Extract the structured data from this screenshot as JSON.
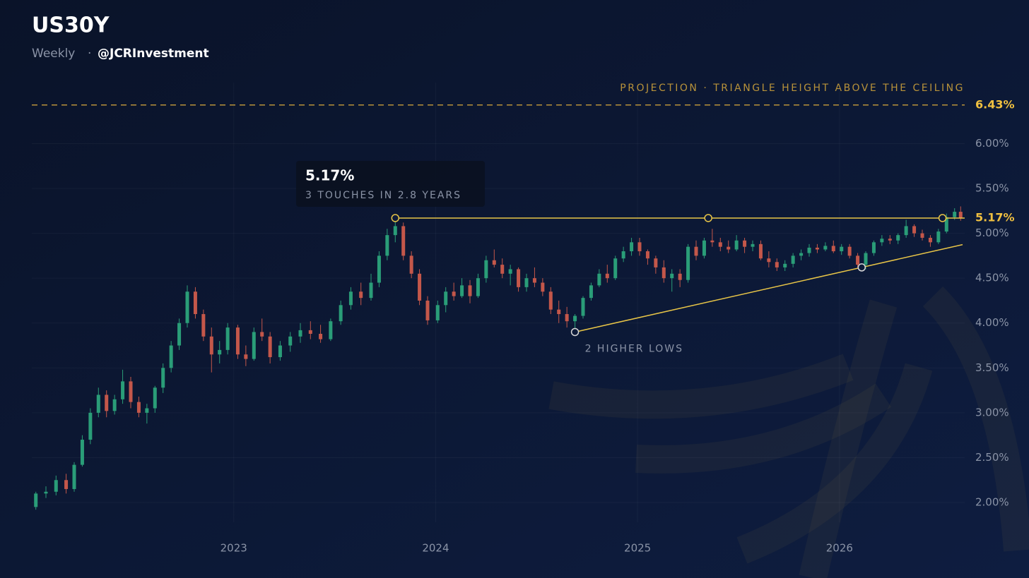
{
  "chart_data": {
    "type": "candlestick",
    "title": "US30Y",
    "subtitle": "Weekly",
    "author": "@JCRInvestment",
    "up_color": "#2a9d78",
    "down_color": "#c4574a",
    "xlim": [
      2022,
      2026.62
    ],
    "xticks": [
      2023,
      2024,
      2025,
      2026
    ],
    "ylim": [
      1.78,
      6.68
    ],
    "yticks": [
      {
        "value": 2,
        "label": "2.00%"
      },
      {
        "value": 2.5,
        "label": "2.50%"
      },
      {
        "value": 3,
        "label": "3.00%"
      },
      {
        "value": 3.5,
        "label": "3.50%"
      },
      {
        "value": 4,
        "label": "4.00%"
      },
      {
        "value": 4.5,
        "label": "4.50%"
      },
      {
        "value": 5,
        "label": "5.00%"
      },
      {
        "value": 5.5,
        "label": "5.50%"
      },
      {
        "value": 6,
        "label": "6.00%"
      }
    ],
    "grid": true,
    "x": [
      2022.02,
      2022.07,
      2022.12,
      2022.17,
      2022.21,
      2022.25,
      2022.29,
      2022.33,
      2022.37,
      2022.41,
      2022.45,
      2022.49,
      2022.53,
      2022.57,
      2022.61,
      2022.65,
      2022.69,
      2022.73,
      2022.77,
      2022.81,
      2022.85,
      2022.89,
      2022.93,
      2022.97,
      2023.02,
      2023.06,
      2023.1,
      2023.14,
      2023.18,
      2023.23,
      2023.28,
      2023.33,
      2023.38,
      2023.43,
      2023.48,
      2023.53,
      2023.58,
      2023.63,
      2023.68,
      2023.72,
      2023.76,
      2023.8,
      2023.84,
      2023.88,
      2023.92,
      2023.96,
      2024.01,
      2024.05,
      2024.09,
      2024.13,
      2024.17,
      2024.21,
      2024.25,
      2024.29,
      2024.33,
      2024.37,
      2024.41,
      2024.45,
      2024.49,
      2024.53,
      2024.57,
      2024.61,
      2024.65,
      2024.69,
      2024.73,
      2024.77,
      2024.81,
      2024.85,
      2024.89,
      2024.93,
      2024.97,
      2025.01,
      2025.05,
      2025.09,
      2025.13,
      2025.17,
      2025.21,
      2025.25,
      2025.29,
      2025.33,
      2025.37,
      2025.41,
      2025.45,
      2025.49,
      2025.53,
      2025.57,
      2025.61,
      2025.65,
      2025.69,
      2025.73,
      2025.77,
      2025.81,
      2025.85,
      2025.89,
      2025.93,
      2025.97,
      2026.01,
      2026.05,
      2026.09,
      2026.13,
      2026.17,
      2026.21,
      2026.25,
      2026.29,
      2026.33,
      2026.37,
      2026.41,
      2026.45,
      2026.49,
      2026.53,
      2026.57,
      2026.6
    ],
    "open": [
      1.95,
      2.1,
      2.12,
      2.25,
      2.15,
      2.42,
      2.7,
      3.0,
      3.2,
      3.02,
      3.15,
      3.35,
      3.12,
      3.0,
      3.05,
      3.28,
      3.5,
      3.75,
      4.0,
      4.35,
      4.1,
      3.85,
      3.65,
      3.7,
      3.95,
      3.65,
      3.6,
      3.9,
      3.85,
      3.62,
      3.75,
      3.85,
      3.92,
      3.88,
      3.82,
      4.02,
      4.2,
      4.35,
      4.28,
      4.45,
      4.75,
      4.98,
      5.08,
      4.75,
      4.55,
      4.25,
      4.03,
      4.2,
      4.35,
      4.3,
      4.42,
      4.3,
      4.5,
      4.7,
      4.65,
      4.55,
      4.6,
      4.4,
      4.5,
      4.45,
      4.35,
      4.15,
      4.1,
      4.02,
      4.08,
      4.28,
      4.42,
      4.55,
      4.5,
      4.72,
      4.8,
      4.9,
      4.8,
      4.72,
      4.62,
      4.5,
      4.55,
      4.48,
      4.85,
      4.75,
      4.92,
      4.9,
      4.85,
      4.82,
      4.92,
      4.85,
      4.88,
      4.72,
      4.68,
      4.62,
      4.66,
      4.75,
      4.78,
      4.84,
      4.82,
      4.86,
      4.8,
      4.85,
      4.75,
      4.65,
      4.78,
      4.9,
      4.94,
      4.92,
      4.98,
      5.08,
      5.0,
      4.95,
      4.9,
      5.02,
      5.18,
      5.24
    ],
    "high": [
      2.12,
      2.18,
      2.3,
      2.32,
      2.45,
      2.75,
      3.05,
      3.28,
      3.25,
      3.2,
      3.48,
      3.4,
      3.18,
      3.1,
      3.3,
      3.55,
      3.8,
      4.05,
      4.42,
      4.4,
      4.15,
      3.95,
      3.8,
      4.0,
      3.98,
      3.75,
      3.95,
      4.05,
      3.9,
      3.8,
      3.9,
      4.0,
      4.02,
      3.98,
      4.05,
      4.25,
      4.4,
      4.45,
      4.55,
      4.8,
      5.05,
      5.17,
      5.12,
      4.8,
      4.6,
      4.3,
      4.25,
      4.4,
      4.45,
      4.5,
      4.48,
      4.55,
      4.75,
      4.82,
      4.72,
      4.65,
      4.62,
      4.55,
      4.62,
      4.5,
      4.4,
      4.25,
      4.18,
      4.1,
      4.3,
      4.45,
      4.6,
      4.65,
      4.75,
      4.85,
      4.95,
      4.95,
      4.82,
      4.75,
      4.7,
      4.6,
      4.6,
      4.88,
      4.92,
      4.95,
      5.05,
      4.95,
      4.92,
      4.98,
      4.95,
      4.92,
      4.92,
      4.8,
      4.72,
      4.7,
      4.78,
      4.82,
      4.88,
      4.88,
      4.9,
      4.92,
      4.88,
      4.88,
      4.78,
      4.8,
      4.92,
      4.98,
      4.98,
      5.0,
      5.15,
      5.1,
      5.04,
      4.98,
      5.05,
      5.22,
      5.28,
      5.3
    ],
    "low": [
      1.92,
      2.05,
      2.08,
      2.1,
      2.12,
      2.4,
      2.65,
      2.95,
      2.95,
      2.98,
      3.1,
      3.05,
      2.95,
      2.88,
      3.0,
      3.22,
      3.45,
      3.7,
      3.95,
      4.05,
      3.8,
      3.45,
      3.55,
      3.65,
      3.6,
      3.52,
      3.58,
      3.8,
      3.55,
      3.58,
      3.68,
      3.78,
      3.82,
      3.78,
      3.8,
      3.98,
      4.15,
      4.2,
      4.25,
      4.4,
      4.7,
      4.9,
      4.7,
      4.5,
      4.2,
      3.98,
      4.0,
      4.12,
      4.25,
      4.28,
      4.22,
      4.28,
      4.45,
      4.62,
      4.5,
      4.42,
      4.35,
      4.35,
      4.4,
      4.3,
      4.1,
      4.0,
      3.95,
      3.9,
      4.05,
      4.25,
      4.4,
      4.45,
      4.48,
      4.68,
      4.75,
      4.75,
      4.65,
      4.55,
      4.45,
      4.35,
      4.4,
      4.45,
      4.7,
      4.72,
      4.85,
      4.8,
      4.78,
      4.8,
      4.78,
      4.8,
      4.7,
      4.62,
      4.58,
      4.58,
      4.62,
      4.7,
      4.74,
      4.78,
      4.8,
      4.78,
      4.76,
      4.72,
      4.62,
      4.6,
      4.75,
      4.86,
      4.88,
      4.88,
      4.95,
      4.96,
      4.92,
      4.85,
      4.88,
      5.0,
      5.15,
      5.14
    ],
    "close": [
      2.1,
      2.12,
      2.25,
      2.15,
      2.42,
      2.7,
      3.0,
      3.2,
      3.02,
      3.15,
      3.35,
      3.12,
      3.0,
      3.05,
      3.28,
      3.5,
      3.75,
      4.0,
      4.35,
      4.1,
      3.85,
      3.65,
      3.7,
      3.95,
      3.65,
      3.6,
      3.9,
      3.85,
      3.62,
      3.75,
      3.85,
      3.92,
      3.88,
      3.82,
      4.02,
      4.2,
      4.35,
      4.28,
      4.45,
      4.75,
      4.98,
      5.08,
      4.75,
      4.55,
      4.25,
      4.03,
      4.2,
      4.35,
      4.3,
      4.42,
      4.3,
      4.5,
      4.7,
      4.65,
      4.55,
      4.6,
      4.4,
      4.5,
      4.45,
      4.35,
      4.15,
      4.1,
      4.02,
      4.08,
      4.28,
      4.42,
      4.55,
      4.5,
      4.72,
      4.8,
      4.9,
      4.8,
      4.72,
      4.62,
      4.5,
      4.55,
      4.48,
      4.85,
      4.75,
      4.92,
      4.9,
      4.85,
      4.82,
      4.92,
      4.85,
      4.88,
      4.72,
      4.68,
      4.62,
      4.66,
      4.75,
      4.78,
      4.84,
      4.82,
      4.86,
      4.8,
      4.85,
      4.75,
      4.65,
      4.78,
      4.9,
      4.94,
      4.92,
      4.98,
      5.08,
      5.0,
      4.95,
      4.9,
      5.02,
      5.18,
      5.24,
      5.17
    ],
    "ceiling": {
      "value": 5.17,
      "label": "5.17%",
      "color": "#e8c547",
      "touches_x": [
        2023.8,
        2025.35,
        2026.51
      ]
    },
    "tooltip_text": "3 TOUCHES IN 2.8 YEARS",
    "trendline": {
      "label": "2 HIGHER LOWS",
      "color": "#e8c547",
      "x": [
        2024.69,
        2026.11
      ],
      "y": [
        3.9,
        4.62
      ]
    },
    "projection": {
      "value": 6.43,
      "label": "6.43%",
      "text": "PROJECTION · TRIANGLE HEIGHT ABOVE THE CEILING",
      "color": "#b8923a"
    }
  }
}
